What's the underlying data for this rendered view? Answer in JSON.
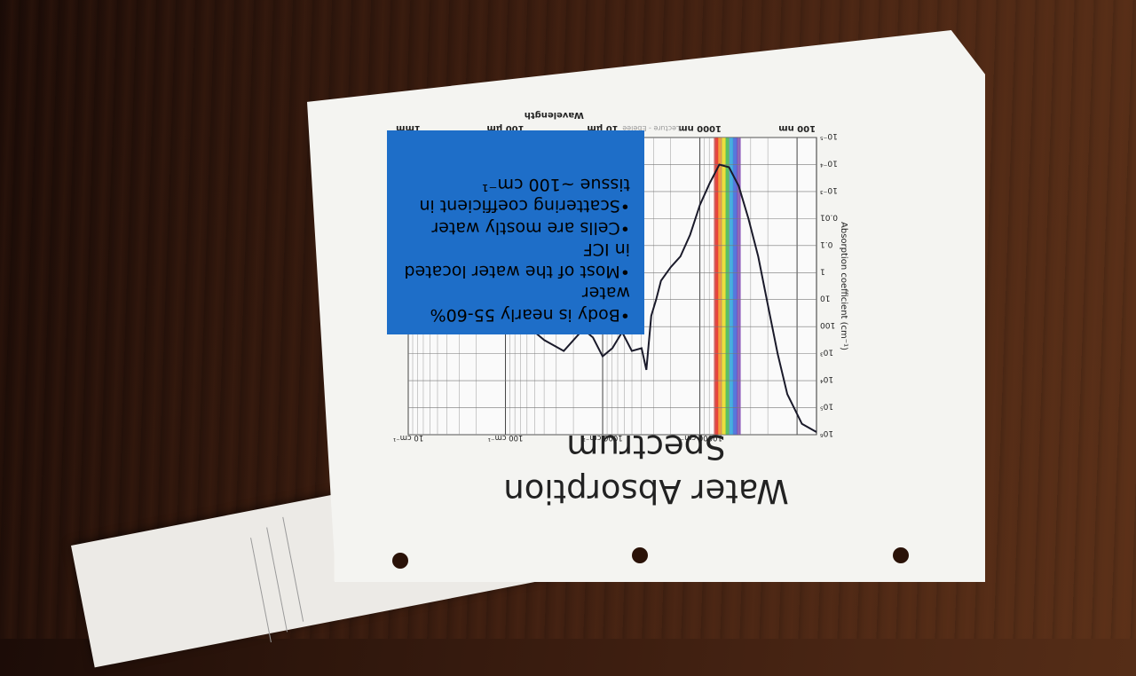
{
  "slide": {
    "title": "Water Absorption Spectrum",
    "bullets": [
      "•Body is nearly 55-60%",
      "water",
      "•Most of the water located",
      "in ICF",
      "•Cells are mostly water",
      "•Scattering coefficient in",
      "tissue ~100 cm⁻¹"
    ]
  },
  "chart_data": {
    "type": "line",
    "title": "",
    "xlabel": "Wavelength",
    "ylabel": "Absorption coefficient (cm⁻¹)",
    "yticks": [
      "10⁶",
      "10⁵",
      "10⁴",
      "10³",
      "100",
      "10",
      "1",
      "0.1",
      "0.01",
      "10⁻³",
      "10⁻⁴",
      "10⁻⁵"
    ],
    "wavenumber_labels": [
      "10000 cm⁻¹",
      "1000 cm⁻¹",
      "100 cm⁻¹",
      "10 cm⁻¹"
    ],
    "wavelength_labels": [
      "100 nm",
      "1000 nm",
      "10 µm",
      "100 µm",
      "1mm"
    ],
    "watermark": "Lecture - Ebelee",
    "ylim": [
      1e-05,
      1000000.0
    ],
    "series": [
      {
        "name": "water",
        "x_log10_nm": [
          1.8,
          1.95,
          2.1,
          2.2,
          2.3,
          2.4,
          2.5,
          2.6,
          2.7,
          2.8,
          2.9,
          3.0,
          3.1,
          3.2,
          3.3,
          3.4,
          3.45,
          3.5,
          3.55,
          3.6,
          3.7,
          3.8,
          3.9,
          4.0,
          4.1,
          4.2,
          4.4,
          4.6,
          4.8,
          5.0,
          5.2,
          5.5,
          5.8,
          6.0
        ],
        "y_log10_cm": [
          5.9,
          5.6,
          4.5,
          3.0,
          1.2,
          -0.6,
          -2.0,
          -3.2,
          -3.9,
          -4.0,
          -3.3,
          -2.5,
          -1.4,
          -0.6,
          -0.2,
          0.3,
          1.0,
          1.6,
          3.6,
          2.8,
          2.9,
          2.2,
          2.8,
          3.1,
          2.4,
          2.1,
          2.9,
          2.5,
          1.9,
          1.7,
          1.6,
          1.4,
          1.2,
          1.0
        ]
      }
    ]
  }
}
